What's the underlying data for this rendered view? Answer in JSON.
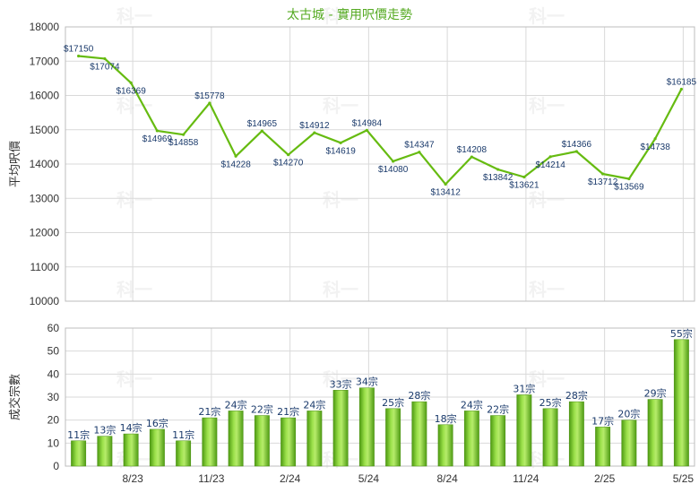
{
  "chart_data": [
    {
      "type": "line",
      "title": "太古城 - 實用呎價走勢",
      "ylabel": "平均呎價",
      "ylim": [
        10000,
        18000
      ],
      "yticks": [
        10000,
        11000,
        12000,
        13000,
        14000,
        15000,
        16000,
        17000,
        18000
      ],
      "x_tick_labels": [
        "8/23",
        "11/23",
        "2/24",
        "5/24",
        "8/24",
        "11/24",
        "2/25",
        "5/25"
      ],
      "grid": true,
      "line_color": "#66bb11",
      "series": [
        {
          "values": [
            17150,
            17074,
            16369,
            14969,
            14858,
            15778,
            14228,
            14965,
            14270,
            14912,
            14619,
            14984,
            14080,
            14347,
            13412,
            14208,
            13842,
            13621,
            14214,
            14366,
            13712,
            13569,
            14738,
            16185
          ],
          "labels": [
            "$17150",
            "$17074",
            "$16369",
            "$14969",
            "$14858",
            "$15778",
            "$14228",
            "$14965",
            "$14270",
            "$14912",
            "$14619",
            "$14984",
            "$14080",
            "$14347",
            "$13412",
            "$14208",
            "$13842",
            "$13621",
            "$14214",
            "$14366",
            "$13712",
            "$13569",
            "$14738",
            "$16185"
          ]
        }
      ]
    },
    {
      "type": "bar",
      "ylabel": "成交宗數",
      "ylim": [
        0,
        60
      ],
      "yticks": [
        0,
        10,
        20,
        30,
        40,
        50,
        60
      ],
      "x_tick_labels": [
        "8/23",
        "11/23",
        "2/24",
        "5/24",
        "8/24",
        "11/24",
        "2/25",
        "5/25"
      ],
      "grid": true,
      "bar_color": "#66bb22",
      "series": [
        {
          "values": [
            11,
            13,
            14,
            16,
            11,
            21,
            24,
            22,
            21,
            24,
            33,
            34,
            25,
            28,
            18,
            24,
            22,
            31,
            25,
            28,
            17,
            20,
            29,
            55
          ],
          "labels": [
            "11宗",
            "13宗",
            "14宗",
            "16宗",
            "11宗",
            "21宗",
            "24宗",
            "22宗",
            "21宗",
            "24宗",
            "33宗",
            "34宗",
            "25宗",
            "28宗",
            "18宗",
            "24宗",
            "22宗",
            "31宗",
            "25宗",
            "28宗",
            "17宗",
            "20宗",
            "29宗",
            "55宗"
          ]
        }
      ]
    }
  ],
  "watermark": "科一"
}
